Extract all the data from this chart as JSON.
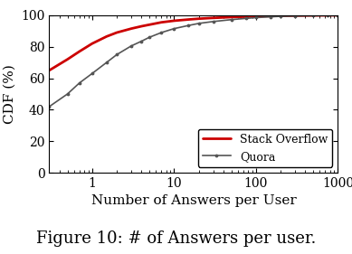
{
  "title": "Figure 10: # of Answers per user.",
  "xlabel": "Number of Answers per User",
  "ylabel": "CDF (%)",
  "xlim": [
    0.3,
    1000
  ],
  "ylim": [
    0,
    100
  ],
  "so_color": "#cc0000",
  "quora_color": "#555555",
  "so_label": "Stack Overflow",
  "quora_label": "Quora",
  "legend_loc": "lower right",
  "so_x": [
    0.3,
    0.5,
    0.7,
    1.0,
    1.5,
    2.0,
    3.0,
    4.0,
    5.0,
    7.0,
    10.0,
    15.0,
    20.0,
    30.0,
    50.0,
    75.0,
    100.0,
    150.0,
    200.0,
    300.0,
    500.0,
    750.0,
    1000.0
  ],
  "so_y": [
    65.0,
    72.0,
    77.0,
    82.0,
    86.5,
    89.0,
    91.5,
    93.0,
    94.0,
    95.5,
    96.5,
    97.3,
    97.8,
    98.3,
    98.8,
    99.1,
    99.3,
    99.5,
    99.65,
    99.78,
    99.88,
    99.94,
    99.98
  ],
  "quora_x": [
    0.3,
    0.5,
    0.7,
    1.0,
    1.5,
    2.0,
    3.0,
    4.0,
    5.0,
    7.0,
    10.0,
    15.0,
    20.0,
    30.0,
    50.0,
    75.0,
    100.0,
    150.0,
    200.0,
    300.0,
    500.0,
    750.0,
    1000.0
  ],
  "quora_y": [
    42.0,
    50.0,
    57.0,
    63.0,
    70.0,
    75.0,
    80.5,
    83.5,
    86.0,
    89.0,
    91.5,
    93.5,
    94.8,
    96.0,
    97.2,
    98.0,
    98.5,
    99.0,
    99.3,
    99.55,
    99.75,
    99.88,
    99.95
  ],
  "xticks": [
    1,
    10,
    100,
    1000
  ],
  "yticks": [
    0,
    20,
    40,
    60,
    80,
    100
  ],
  "font_family": "DejaVu Serif",
  "axis_fontsize": 10,
  "label_fontsize": 11,
  "legend_fontsize": 9,
  "caption_fontsize": 13
}
